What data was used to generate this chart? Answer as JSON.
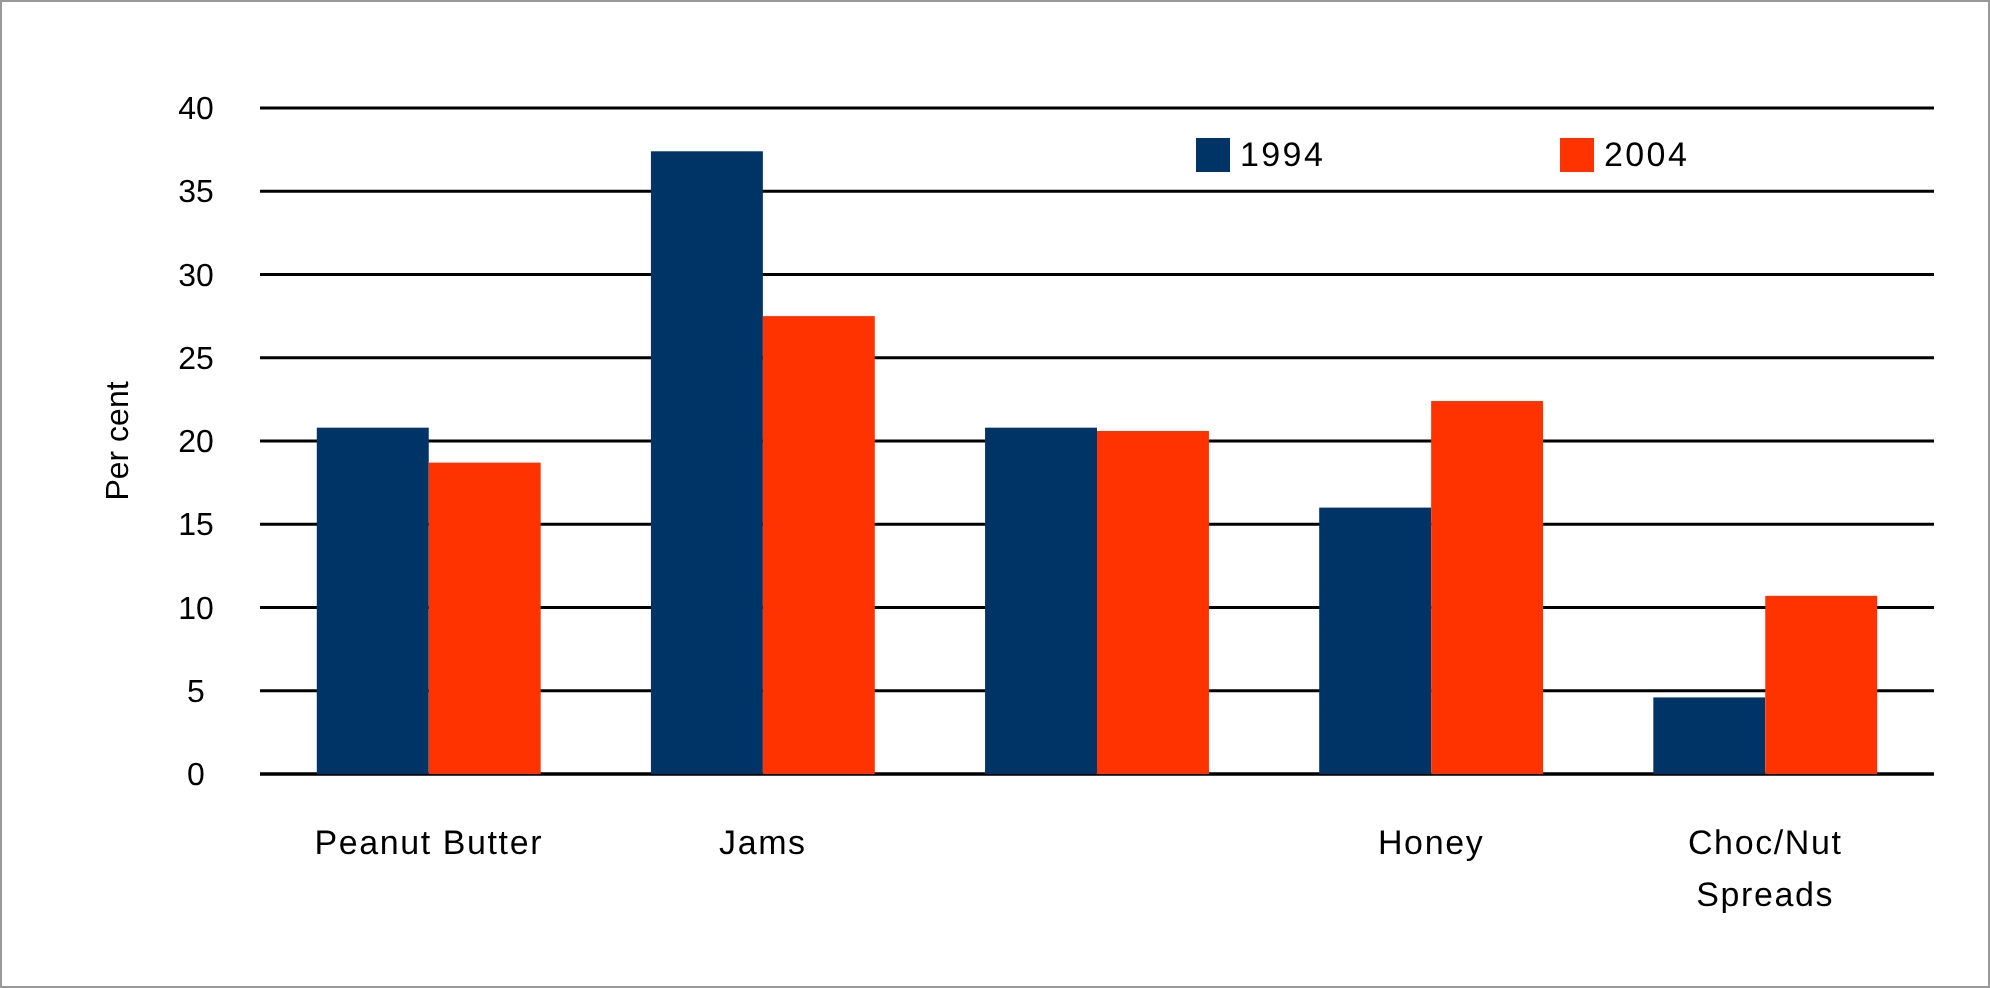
{
  "chart_data": {
    "type": "bar",
    "ylabel": "Per cent",
    "categories": [
      "Peanut Butter",
      "Jams",
      null,
      "Honey",
      "Choc/Nut Spreads"
    ],
    "series": [
      {
        "name": "1994",
        "color": "#003366",
        "values": [
          20.8,
          37.4,
          20.8,
          16.0,
          4.6
        ]
      },
      {
        "name": "2004",
        "color": "#ff3300",
        "values": [
          18.7,
          27.5,
          20.6,
          22.4,
          10.7
        ]
      }
    ],
    "ylim": [
      0,
      40
    ],
    "yticks": [
      0,
      5,
      10,
      15,
      20,
      25,
      30,
      35,
      40
    ],
    "grid": "y",
    "legend": "top right"
  }
}
